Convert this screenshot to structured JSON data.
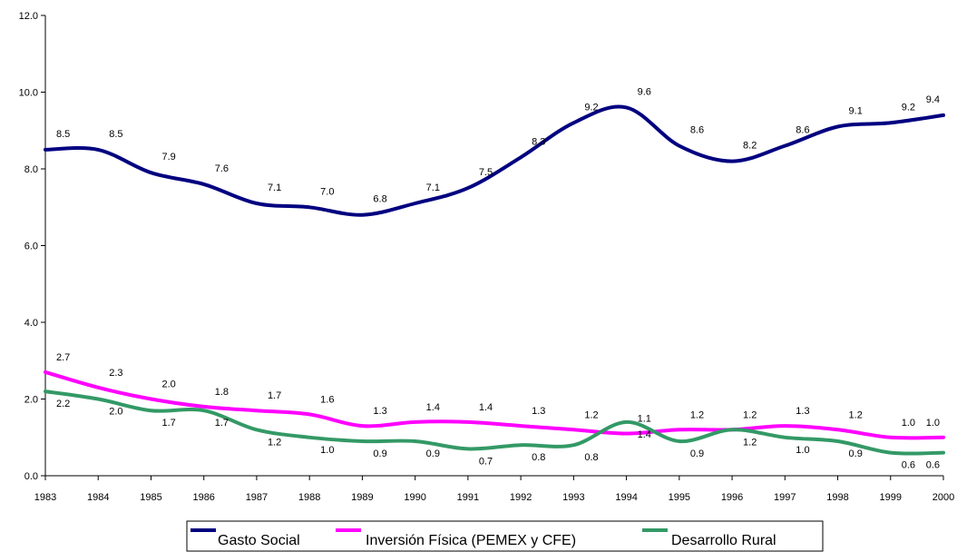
{
  "chart_data": {
    "type": "line",
    "x": [
      "1983",
      "1984",
      "1985",
      "1986",
      "1987",
      "1988",
      "1989",
      "1990",
      "1991",
      "1992",
      "1993",
      "1994",
      "1995",
      "1996",
      "1997",
      "1998",
      "1999",
      "2000"
    ],
    "ylim": [
      0,
      12
    ],
    "yticks": [
      "0.0",
      "2.0",
      "4.0",
      "6.0",
      "8.0",
      "10.0",
      "12.0"
    ],
    "grid": false,
    "legend_position": "bottom",
    "series": [
      {
        "name": "Gasto Social",
        "color": "#000080",
        "values": [
          8.5,
          8.5,
          7.9,
          7.6,
          7.1,
          7.0,
          6.8,
          7.1,
          7.5,
          8.3,
          9.2,
          9.6,
          8.6,
          8.2,
          8.6,
          9.1,
          9.2,
          9.4
        ],
        "labels": [
          "8.5",
          "8.5",
          "7.9",
          "7.6",
          "7.1",
          "7.0",
          "6.8",
          "7.1",
          "7.5",
          "8.3",
          "9.2",
          "9.6",
          "8.6",
          "8.2",
          "8.6",
          "9.1",
          "9.2",
          "9.4"
        ]
      },
      {
        "name": "Inversión Física (PEMEX y CFE)",
        "color": "#FF00FF",
        "values": [
          2.7,
          2.3,
          2.0,
          1.8,
          1.7,
          1.6,
          1.3,
          1.4,
          1.4,
          1.3,
          1.2,
          1.1,
          1.2,
          1.2,
          1.3,
          1.2,
          1.0,
          1.0
        ],
        "labels": [
          "2.7",
          "2.3",
          "2.0",
          "1.8",
          "1.7",
          "1.6",
          "1.3",
          "1.4",
          "1.4",
          "1.3",
          "1.2",
          "1.1",
          "1.2",
          "1.2",
          "1.3",
          "1.2",
          "1.0",
          "1.0"
        ]
      },
      {
        "name": "Desarrollo Rural",
        "color": "#339966",
        "values": [
          2.2,
          2.0,
          1.7,
          1.7,
          1.2,
          1.0,
          0.9,
          0.9,
          0.7,
          0.8,
          0.8,
          1.4,
          0.9,
          1.2,
          1.0,
          0.9,
          0.6,
          0.6
        ],
        "labels": [
          "2.2",
          "2.0",
          "1.7",
          "1.7",
          "1.2",
          "1.0",
          "0.9",
          "0.9",
          "0.7",
          "0.8",
          "0.8",
          "1.4",
          "0.9",
          "1.2",
          "1.0",
          "0.9",
          "0.6",
          "0.6"
        ]
      }
    ]
  }
}
